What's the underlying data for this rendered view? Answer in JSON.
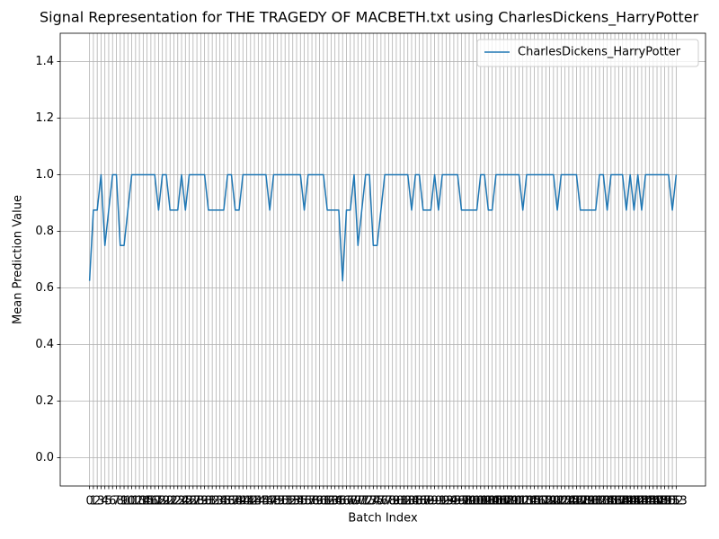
{
  "chart_data": {
    "type": "line",
    "title": "Signal Representation for THE TRAGEDY OF MACBETH.txt using CharlesDickens_HarryPotter",
    "x_label": "Batch Index",
    "y_label": "Mean Prediction Value",
    "x": [
      0,
      1,
      2,
      3,
      4,
      5,
      6,
      7,
      8,
      9,
      10,
      11,
      12,
      13,
      14,
      15,
      16,
      17,
      18,
      19,
      20,
      21,
      22,
      23,
      24,
      25,
      26,
      27,
      28,
      29,
      30,
      31,
      32,
      33,
      34,
      35,
      36,
      37,
      38,
      39,
      40,
      41,
      42,
      43,
      44,
      45,
      46,
      47,
      48,
      49,
      50,
      51,
      52,
      53,
      54,
      55,
      56,
      57,
      58,
      59,
      60,
      61,
      62,
      63,
      64,
      65,
      66,
      67,
      68,
      69,
      70,
      71,
      72,
      73,
      74,
      75,
      76,
      77,
      78,
      79,
      80,
      81,
      82,
      83,
      84,
      85,
      86,
      87,
      88,
      89,
      90,
      91,
      92,
      93,
      94,
      95,
      96,
      97,
      98,
      99,
      100,
      101,
      102,
      103,
      104,
      105,
      106,
      107,
      108,
      109,
      110,
      111,
      112,
      113,
      114,
      115,
      116,
      117,
      118,
      119,
      120,
      121,
      122,
      123,
      124,
      125,
      126,
      127,
      128,
      129,
      130,
      131,
      132,
      133,
      134,
      135,
      136,
      137,
      138,
      139,
      140,
      141,
      142,
      143,
      144,
      145,
      146,
      147,
      148,
      149,
      150,
      151,
      152,
      153
    ],
    "series": [
      {
        "name": "CharlesDickens_HarryPotter",
        "color": "#1f77b4",
        "values": [
          0.625,
          0.875,
          0.875,
          1,
          0.75,
          0.875,
          1,
          1,
          0.75,
          0.75,
          0.875,
          1,
          1,
          1,
          1,
          1,
          1,
          1,
          0.875,
          1,
          1,
          0.875,
          0.875,
          0.875,
          1,
          0.875,
          1,
          1,
          1,
          1,
          1,
          0.875,
          0.875,
          0.875,
          0.875,
          0.875,
          1,
          1,
          0.875,
          0.875,
          1,
          1,
          1,
          1,
          1,
          1,
          1,
          0.875,
          1,
          1,
          1,
          1,
          1,
          1,
          1,
          1,
          0.875,
          1,
          1,
          1,
          1,
          1,
          0.875,
          0.875,
          0.875,
          0.875,
          0.625,
          0.875,
          0.875,
          1,
          0.75,
          0.875,
          1,
          1,
          0.75,
          0.75,
          0.875,
          1,
          1,
          1,
          1,
          1,
          1,
          1,
          0.875,
          1,
          1,
          0.875,
          0.875,
          0.875,
          1,
          0.875,
          1,
          1,
          1,
          1,
          1,
          0.875,
          0.875,
          0.875,
          0.875,
          0.875,
          1,
          1,
          0.875,
          0.875,
          1,
          1,
          1,
          1,
          1,
          1,
          1,
          0.875,
          1,
          1,
          1,
          1,
          1,
          1,
          1,
          1,
          0.875,
          1,
          1,
          1,
          1,
          1,
          0.875,
          0.875,
          0.875,
          0.875,
          0.875,
          1,
          1,
          0.875,
          1,
          1,
          1,
          1,
          0.875,
          1,
          0.875,
          1,
          0.875,
          1,
          1,
          1,
          1,
          1,
          1,
          1,
          0.875,
          1
        ]
      }
    ],
    "xlim": [
      -7.65,
      160.65
    ],
    "ylim": [
      -0.1,
      1.5
    ],
    "xticks": [
      0,
      1,
      2,
      3,
      4,
      5,
      6,
      7,
      8,
      9,
      10,
      11,
      12,
      13,
      14,
      15,
      16,
      17,
      18,
      19,
      20,
      21,
      22,
      23,
      24,
      25,
      26,
      27,
      28,
      29,
      30,
      31,
      32,
      33,
      34,
      35,
      36,
      37,
      38,
      39,
      40,
      41,
      42,
      43,
      44,
      45,
      46,
      47,
      48,
      49,
      50,
      51,
      52,
      53,
      54,
      55,
      56,
      57,
      58,
      59,
      60,
      61,
      62,
      63,
      64,
      65,
      66,
      67,
      68,
      69,
      70,
      71,
      72,
      73,
      74,
      75,
      76,
      77,
      78,
      79,
      80,
      81,
      82,
      83,
      84,
      85,
      86,
      87,
      88,
      89,
      90,
      91,
      92,
      93,
      94,
      95,
      96,
      97,
      98,
      99,
      100,
      101,
      102,
      103,
      104,
      105,
      106,
      107,
      108,
      109,
      110,
      111,
      112,
      113,
      114,
      115,
      116,
      117,
      118,
      119,
      120,
      121,
      122,
      123,
      124,
      125,
      126,
      127,
      128,
      129,
      130,
      131,
      132,
      133,
      134,
      135,
      136,
      137,
      138,
      139,
      140,
      141,
      142,
      143,
      144,
      145,
      146,
      147,
      148,
      149,
      150,
      151,
      152,
      153
    ],
    "yticks": [
      {
        "value": 0,
        "label": "0.0"
      },
      0.2,
      0.4,
      0.6,
      0.8,
      {
        "value": 1,
        "label": "1.0"
      },
      1.2,
      1.4
    ],
    "grid": true,
    "legend": "upper right"
  }
}
